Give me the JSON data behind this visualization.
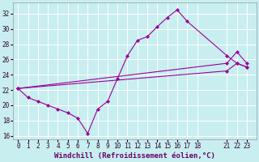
{
  "xlabel": "Windchill (Refroidissement éolien,°C)",
  "bg_color": "#c8eef0",
  "grid_color": "#ffffff",
  "line_color": "#990099",
  "markersize": 2.5,
  "linewidth": 0.8,
  "xlim": [
    -0.5,
    24
  ],
  "ylim": [
    15.5,
    33.5
  ],
  "xticks": [
    0,
    1,
    2,
    3,
    4,
    5,
    6,
    7,
    8,
    9,
    10,
    11,
    12,
    13,
    14,
    15,
    16,
    17,
    18,
    21,
    22,
    23
  ],
  "yticks": [
    16,
    18,
    20,
    22,
    24,
    26,
    28,
    30,
    32
  ],
  "line1_x": [
    0,
    1,
    2,
    3,
    4,
    5,
    6,
    7,
    8,
    9,
    10,
    11,
    12,
    13,
    14,
    15,
    16,
    17,
    21,
    22,
    23
  ],
  "line1_y": [
    22.2,
    21.0,
    20.5,
    20.0,
    19.5,
    19.0,
    18.3,
    16.3,
    19.5,
    20.5,
    23.5,
    26.5,
    28.5,
    29.0,
    30.3,
    31.5,
    32.5,
    31.0,
    26.5,
    25.5,
    25.0
  ],
  "line2_x": [
    0,
    21,
    22,
    23
  ],
  "line2_y": [
    22.2,
    25.5,
    27.0,
    25.5
  ],
  "line3_x": [
    0,
    21,
    22,
    23
  ],
  "line3_y": [
    22.2,
    24.5,
    25.5,
    25.0
  ],
  "tick_fontsize": 5.5,
  "label_fontsize": 6.5
}
